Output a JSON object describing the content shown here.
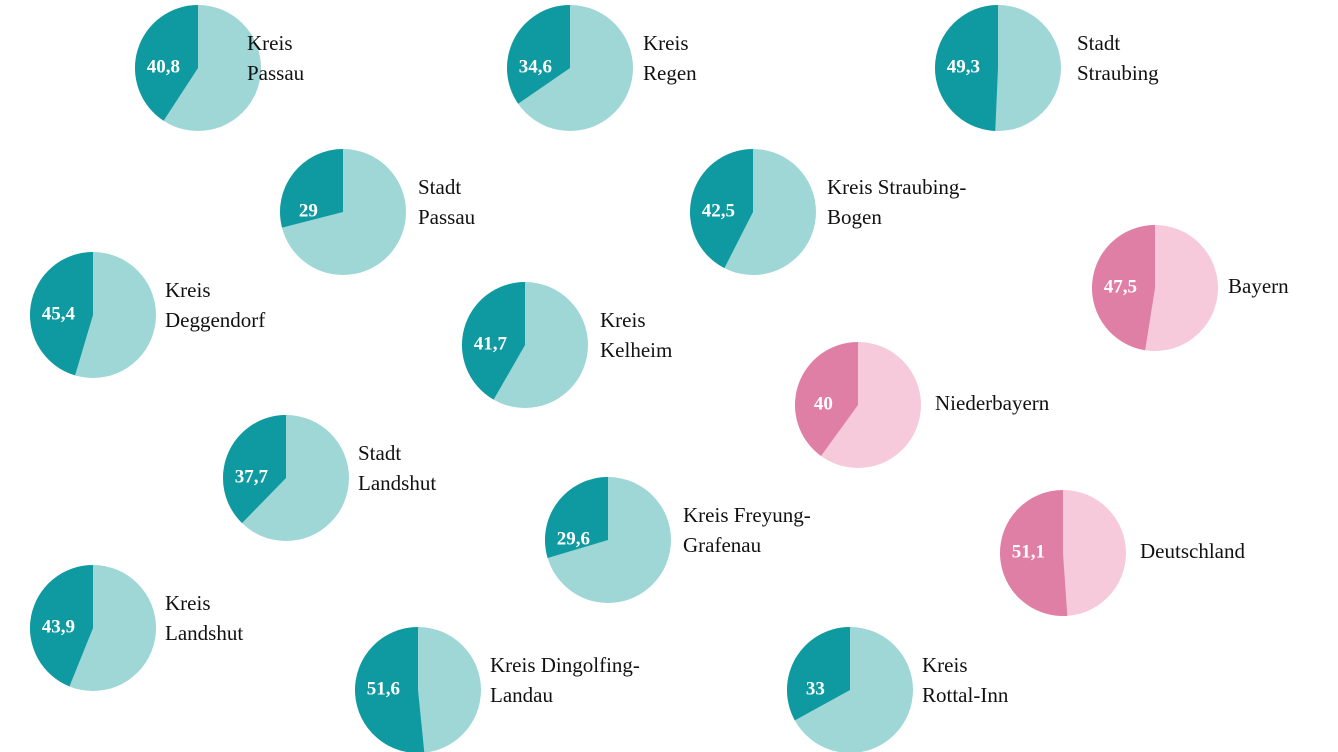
{
  "chart_data": [
    {
      "type": "pie",
      "label": [
        "Kreis",
        "Passau"
      ],
      "values": [
        40.8
      ],
      "value_labels": [
        "40,8"
      ],
      "color": "#0e9aa0",
      "rest_color": "#9fd6d6"
    },
    {
      "type": "pie",
      "label": [
        "Kreis",
        "Regen"
      ],
      "values": [
        34.6
      ],
      "value_labels": [
        "34,6"
      ],
      "color": "#0e9aa0",
      "rest_color": "#9fd6d6"
    },
    {
      "type": "pie",
      "label": [
        "Stadt",
        "Straubing"
      ],
      "values": [
        49.3
      ],
      "value_labels": [
        "49,3"
      ],
      "color": "#0e9aa0",
      "rest_color": "#9fd6d6"
    },
    {
      "type": "pie",
      "label": [
        "Stadt",
        "Passau"
      ],
      "values": [
        29
      ],
      "color": "#0e9aa0",
      "rest_color": "#9fd6d6"
    },
    {
      "type": "pie",
      "label": [
        "Kreis Straubing-",
        "Bogen"
      ],
      "values": [
        42.5
      ],
      "value_labels": [
        "42,5"
      ],
      "color": "#0e9aa0",
      "rest_color": "#9fd6d6"
    },
    {
      "type": "pie",
      "label": [
        "Bayern"
      ],
      "values": [
        47.5
      ],
      "value_labels": [
        "47,5"
      ],
      "color": "#e07fa6",
      "rest_color": "#f6cadb"
    },
    {
      "type": "pie",
      "label": [
        "Kreis",
        "Deggendorf"
      ],
      "values": [
        45.4
      ],
      "value_labels": [
        "45,4"
      ],
      "color": "#0e9aa0",
      "rest_color": "#9fd6d6"
    },
    {
      "type": "pie",
      "label": [
        "Kreis",
        "Kelheim"
      ],
      "values": [
        41.7
      ],
      "value_labels": [
        "41,7"
      ],
      "color": "#0e9aa0",
      "rest_color": "#9fd6d6"
    },
    {
      "type": "pie",
      "label": [
        "Niederbayern"
      ],
      "values": [
        40
      ],
      "color": "#e07fa6",
      "rest_color": "#f6cadb"
    },
    {
      "type": "pie",
      "label": [
        "Stadt",
        "Landshut"
      ],
      "values": [
        37.7
      ],
      "value_labels": [
        "37,7"
      ],
      "color": "#0e9aa0",
      "rest_color": "#9fd6d6"
    },
    {
      "type": "pie",
      "label": [
        "Kreis Freyung-",
        "Grafenau"
      ],
      "values": [
        29.6
      ],
      "value_labels": [
        "29,6"
      ],
      "color": "#0e9aa0",
      "rest_color": "#9fd6d6"
    },
    {
      "type": "pie",
      "label": [
        "Deutschland"
      ],
      "values": [
        51.1
      ],
      "value_labels": [
        "51,1"
      ],
      "color": "#e07fa6",
      "rest_color": "#f6cadb"
    },
    {
      "type": "pie",
      "label": [
        "Kreis",
        "Landshut"
      ],
      "values": [
        43.9
      ],
      "value_labels": [
        "43,9"
      ],
      "color": "#0e9aa0",
      "rest_color": "#9fd6d6"
    },
    {
      "type": "pie",
      "label": [
        "Kreis Dingolfing-",
        "Landau"
      ],
      "values": [
        51.6
      ],
      "value_labels": [
        "51,6"
      ],
      "color": "#0e9aa0",
      "rest_color": "#9fd6d6"
    },
    {
      "type": "pie",
      "label": [
        "Kreis",
        "Rottal-Inn"
      ],
      "values": [
        33
      ],
      "color": "#0e9aa0",
      "rest_color": "#9fd6d6"
    }
  ]
}
